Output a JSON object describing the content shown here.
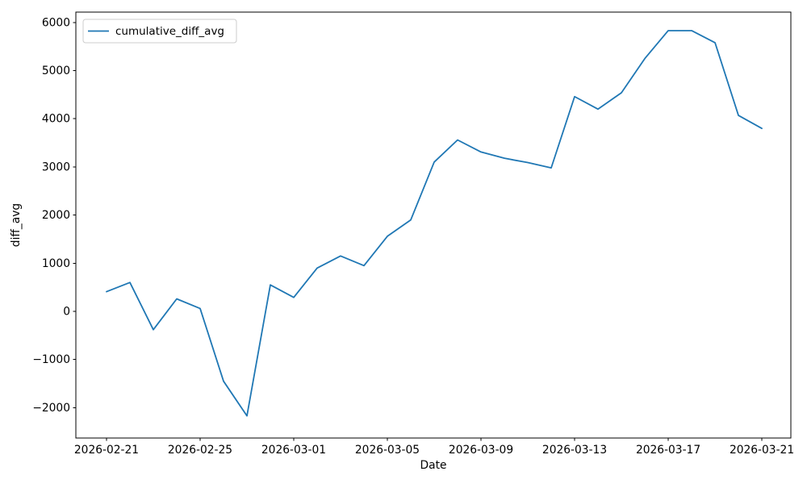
{
  "figure": {
    "background": "#ffffff"
  },
  "chart_data": {
    "type": "line",
    "title": "",
    "xlabel": "Date",
    "ylabel": "diff_avg",
    "grid": false,
    "legend_position": "upper left",
    "line_color": "#1f77b4",
    "axis_color": "#000000",
    "text_color": "#000000",
    "x": [
      "2026-02-21",
      "2026-02-22",
      "2026-02-23",
      "2026-02-24",
      "2026-02-25",
      "2026-02-26",
      "2026-02-27",
      "2026-02-28",
      "2026-03-01",
      "2026-03-02",
      "2026-03-03",
      "2026-03-04",
      "2026-03-05",
      "2026-03-06",
      "2026-03-07",
      "2026-03-08",
      "2026-03-09",
      "2026-03-10",
      "2026-03-11",
      "2026-03-12",
      "2026-03-13",
      "2026-03-14",
      "2026-03-15",
      "2026-03-16",
      "2026-03-17",
      "2026-03-18",
      "2026-03-19",
      "2026-03-20",
      "2026-03-21"
    ],
    "series": [
      {
        "name": "cumulative_diff_avg",
        "color": "#1f77b4",
        "values": [
          410,
          600,
          -380,
          260,
          60,
          -1450,
          -2170,
          550,
          290,
          900,
          1150,
          950,
          1560,
          1900,
          3100,
          3560,
          3310,
          3180,
          3090,
          2980,
          4460,
          4200,
          4540,
          5250,
          5830,
          5830,
          5580,
          4070,
          3800
        ]
      }
    ],
    "x_tick_indices": [
      0,
      4,
      8,
      12,
      16,
      20,
      24,
      28
    ],
    "x_tick_labels": [
      "2026-02-21",
      "2026-02-25",
      "2026-03-01",
      "2026-03-05",
      "2026-03-09",
      "2026-03-13",
      "2026-03-17",
      "2026-03-21"
    ],
    "y_ticks": [
      -2000,
      -1000,
      0,
      1000,
      2000,
      3000,
      4000,
      5000,
      6000
    ],
    "y_tick_labels": [
      "−2000",
      "−1000",
      "0",
      "1000",
      "2000",
      "3000",
      "4000",
      "5000",
      "6000"
    ],
    "xlim": [
      -1.31,
      29.24
    ],
    "ylim": [
      -2630,
      6215
    ]
  }
}
